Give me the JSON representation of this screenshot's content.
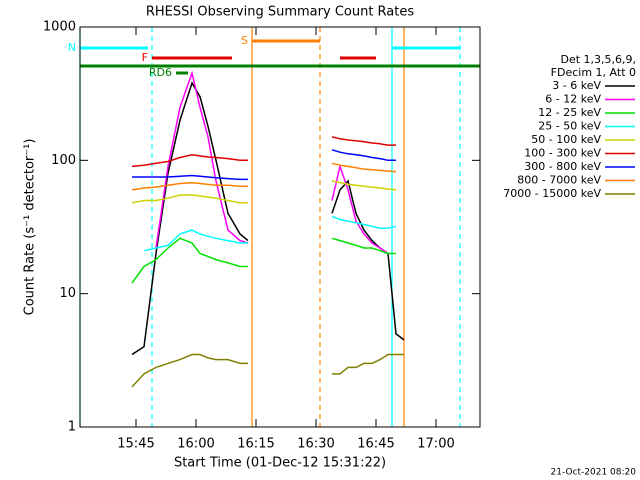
{
  "chart_data": {
    "type": "line",
    "title": "RHESSI Observing Summary Count Rates",
    "x_label": "Start Time (01-Dec-12 15:31:22)",
    "y_label": "Count Rate (s⁻¹ detector⁻¹)",
    "footer": "21-Oct-2021 08:20",
    "log_y": true,
    "xlim": [
      "15:31",
      "17:11"
    ],
    "xticks": [
      "15:45",
      "16:00",
      "16:15",
      "16:30",
      "16:45",
      "17:00"
    ],
    "ylim": [
      1,
      1000
    ],
    "yticks": [
      1,
      10,
      100,
      1000
    ],
    "legend_header": [
      "Det 1,3,5,6,9,",
      "FDecim 1, Att 0"
    ],
    "x": [
      "15:44",
      "15:47",
      "15:50",
      "15:53",
      "15:56",
      "15:59",
      "16:01",
      "16:03",
      "16:05",
      "16:08",
      "16:11",
      "16:13",
      "16:24",
      "16:34",
      "16:36",
      "16:38",
      "16:40",
      "16:42",
      "16:44",
      "16:46",
      "16:48",
      "16:50",
      "16:52"
    ],
    "series": [
      {
        "name": "3 - 6 keV",
        "color": "#000000",
        "values": [
          3.5,
          4,
          20,
          80,
          200,
          380,
          300,
          180,
          100,
          40,
          28,
          25,
          null,
          40,
          60,
          70,
          40,
          30,
          25,
          22,
          20,
          5,
          4.5
        ]
      },
      {
        "name": "6 - 12 keV",
        "color": "#ff00ff",
        "values": [
          null,
          null,
          22,
          90,
          250,
          450,
          250,
          150,
          70,
          30,
          25,
          24,
          null,
          50,
          90,
          60,
          35,
          28,
          24,
          22,
          20,
          null,
          null
        ]
      },
      {
        "name": "12 - 25 keV",
        "color": "#00e000",
        "values": [
          12,
          16,
          18,
          22,
          26,
          24,
          20,
          19,
          18,
          17,
          16,
          16,
          null,
          26,
          25,
          24,
          23,
          22,
          22,
          21,
          20,
          20,
          null
        ]
      },
      {
        "name": "25 - 50 keV",
        "color": "#00ffff",
        "values": [
          null,
          21,
          22,
          23,
          28,
          30,
          28,
          27,
          26,
          25,
          24,
          24,
          null,
          38,
          36,
          35,
          34,
          33,
          32,
          31,
          31,
          32,
          null
        ]
      },
      {
        "name": "50 - 100 keV",
        "color": "#d0d000",
        "values": [
          48,
          50,
          50,
          52,
          55,
          55,
          54,
          53,
          52,
          50,
          48,
          48,
          null,
          70,
          68,
          66,
          65,
          64,
          63,
          62,
          61,
          60,
          null
        ]
      },
      {
        "name": "100 - 300 keV",
        "color": "#e00000",
        "values": [
          90,
          92,
          95,
          98,
          105,
          110,
          108,
          106,
          105,
          103,
          100,
          100,
          null,
          150,
          145,
          142,
          140,
          138,
          135,
          133,
          130,
          130,
          null
        ]
      },
      {
        "name": "300 - 800 keV",
        "color": "#0000ff",
        "values": [
          75,
          75,
          75,
          75,
          76,
          77,
          76,
          75,
          74,
          73,
          72,
          72,
          null,
          120,
          115,
          112,
          110,
          108,
          105,
          103,
          100,
          100,
          null
        ]
      },
      {
        "name": "800 - 7000 keV",
        "color": "#ff8000",
        "values": [
          60,
          62,
          63,
          65,
          67,
          68,
          67,
          66,
          65,
          65,
          64,
          64,
          null,
          95,
          92,
          90,
          88,
          86,
          85,
          84,
          83,
          82,
          null
        ]
      },
      {
        "name": "7000 - 15000 keV",
        "color": "#808000",
        "values": [
          2,
          2.5,
          2.8,
          3,
          3.2,
          3.5,
          3.5,
          3.3,
          3.2,
          3.2,
          3,
          3,
          null,
          2.5,
          2.5,
          2.8,
          2.8,
          3,
          3,
          3.2,
          3.5,
          3.5,
          3.5
        ]
      }
    ],
    "flags": [
      {
        "label": "N",
        "color": "#00ffff",
        "start": "15:31",
        "end": "15:48",
        "level": 1
      },
      {
        "color": "#00ffff",
        "start": "16:49",
        "end": "17:06",
        "level": 1
      },
      {
        "label": "S",
        "color": "#ff8000",
        "start": "16:14",
        "end": "16:31",
        "level": 0
      },
      {
        "label": "F",
        "color": "#e00000",
        "start": "15:49",
        "end": "16:09",
        "level": 2
      },
      {
        "color": "#e00000",
        "start": "16:36",
        "end": "16:45",
        "level": 2
      },
      {
        "color": "#008000",
        "start": "15:31",
        "end": "17:11",
        "level": 3
      },
      {
        "label": "RD6",
        "color": "#008000",
        "start": "15:55",
        "end": "15:58",
        "level": 4
      }
    ],
    "vlines": [
      {
        "x": "15:31",
        "color": "#00ffff",
        "dashed": false
      },
      {
        "x": "15:49",
        "color": "#00ffff",
        "dashed": true
      },
      {
        "x": "16:49",
        "color": "#00ffff",
        "dashed": false
      },
      {
        "x": "17:06",
        "color": "#00ffff",
        "dashed": true
      },
      {
        "x": "16:14",
        "color": "#ff8000",
        "dashed": false
      },
      {
        "x": "16:31",
        "color": "#ff8000",
        "dashed": true
      },
      {
        "x": "16:52",
        "color": "#ff8000",
        "dashed": false
      }
    ]
  }
}
